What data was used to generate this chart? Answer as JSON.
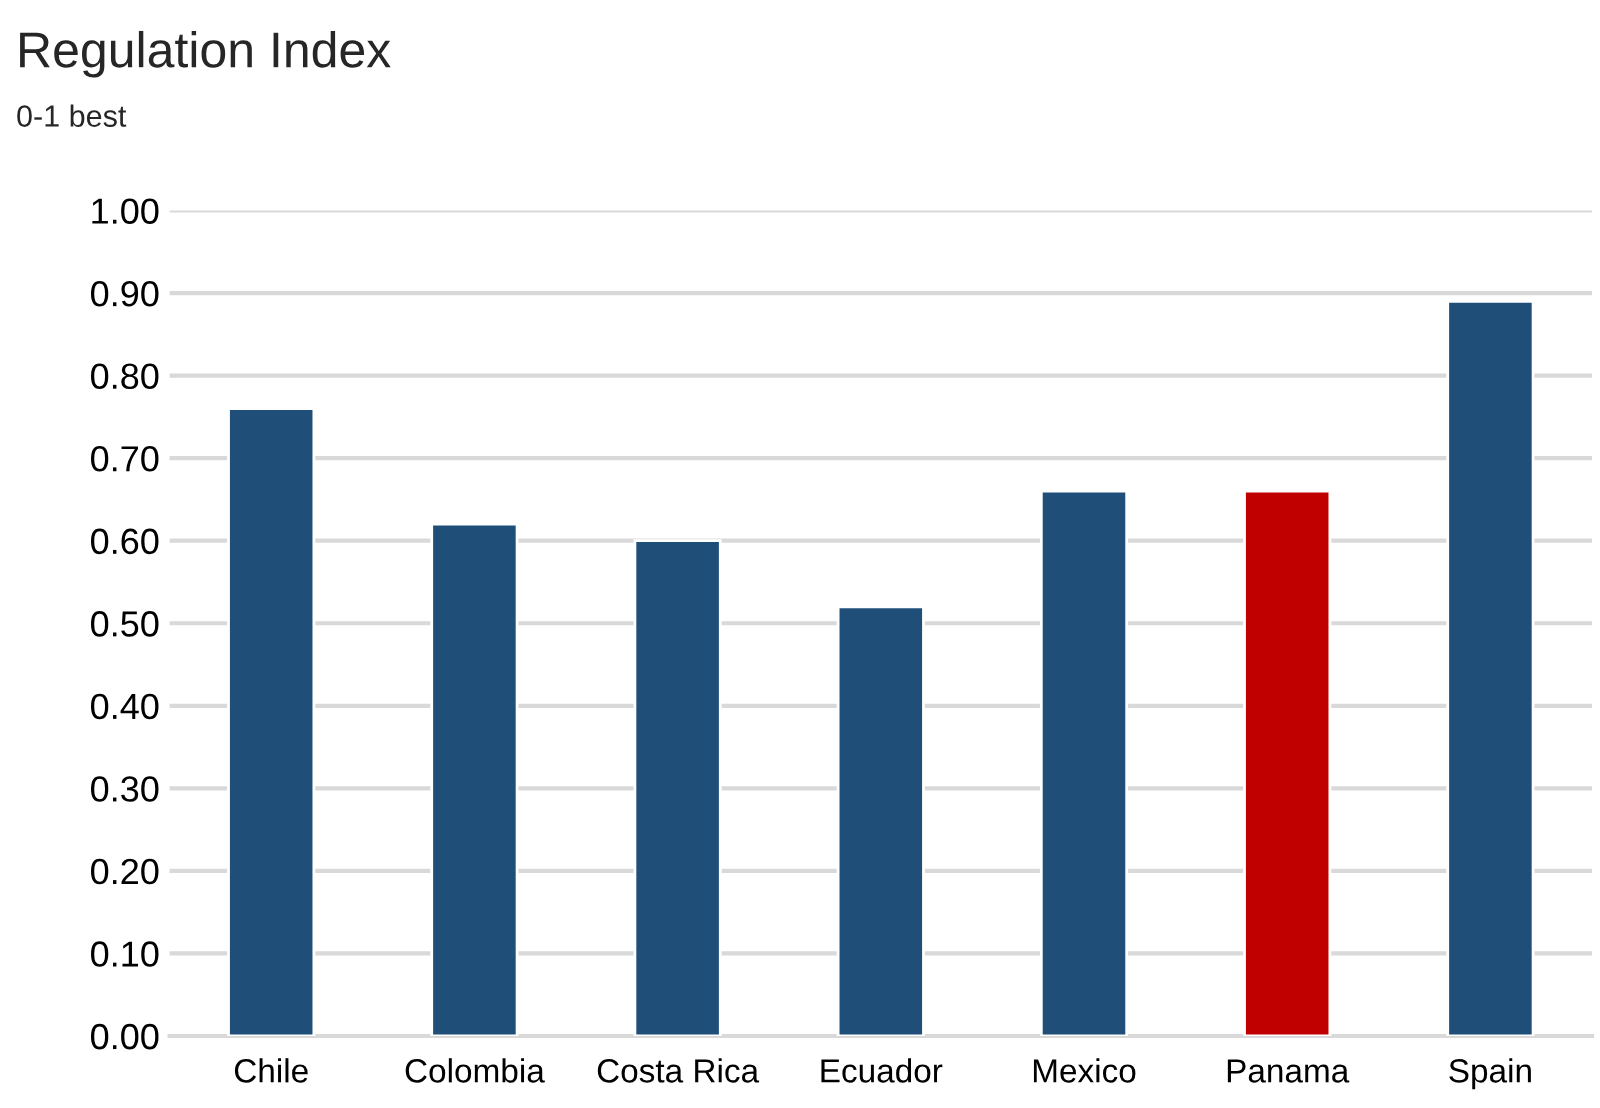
{
  "chart_data": {
    "type": "bar",
    "title": "Regulation Index",
    "subtitle": "0-1 best",
    "categories": [
      "Chile",
      "Colombia",
      "Costa Rica",
      "Ecuador",
      "Mexico",
      "Panama",
      "Spain"
    ],
    "values": [
      0.76,
      0.62,
      0.6,
      0.52,
      0.66,
      0.66,
      0.89
    ],
    "colors": [
      "#1f4e79",
      "#1f4e79",
      "#1f4e79",
      "#1f4e79",
      "#1f4e79",
      "#c00000",
      "#1f4e79"
    ],
    "ylim": [
      0,
      1
    ],
    "yticks": [
      {
        "value": 0,
        "label": "0.00"
      },
      {
        "value": 0.1,
        "label": "0.10"
      },
      {
        "value": 0.2,
        "label": "0.20"
      },
      {
        "value": 0.3,
        "label": "0.30"
      },
      {
        "value": 0.4,
        "label": "0.40"
      },
      {
        "value": 0.5,
        "label": "0.50"
      },
      {
        "value": 0.6,
        "label": "0.60"
      },
      {
        "value": 0.7,
        "label": "0.70"
      },
      {
        "value": 0.8,
        "label": "0.80"
      },
      {
        "value": 0.9,
        "label": "0.90"
      },
      {
        "value": 1.0,
        "label": "1.00"
      }
    ],
    "grid": "y"
  }
}
